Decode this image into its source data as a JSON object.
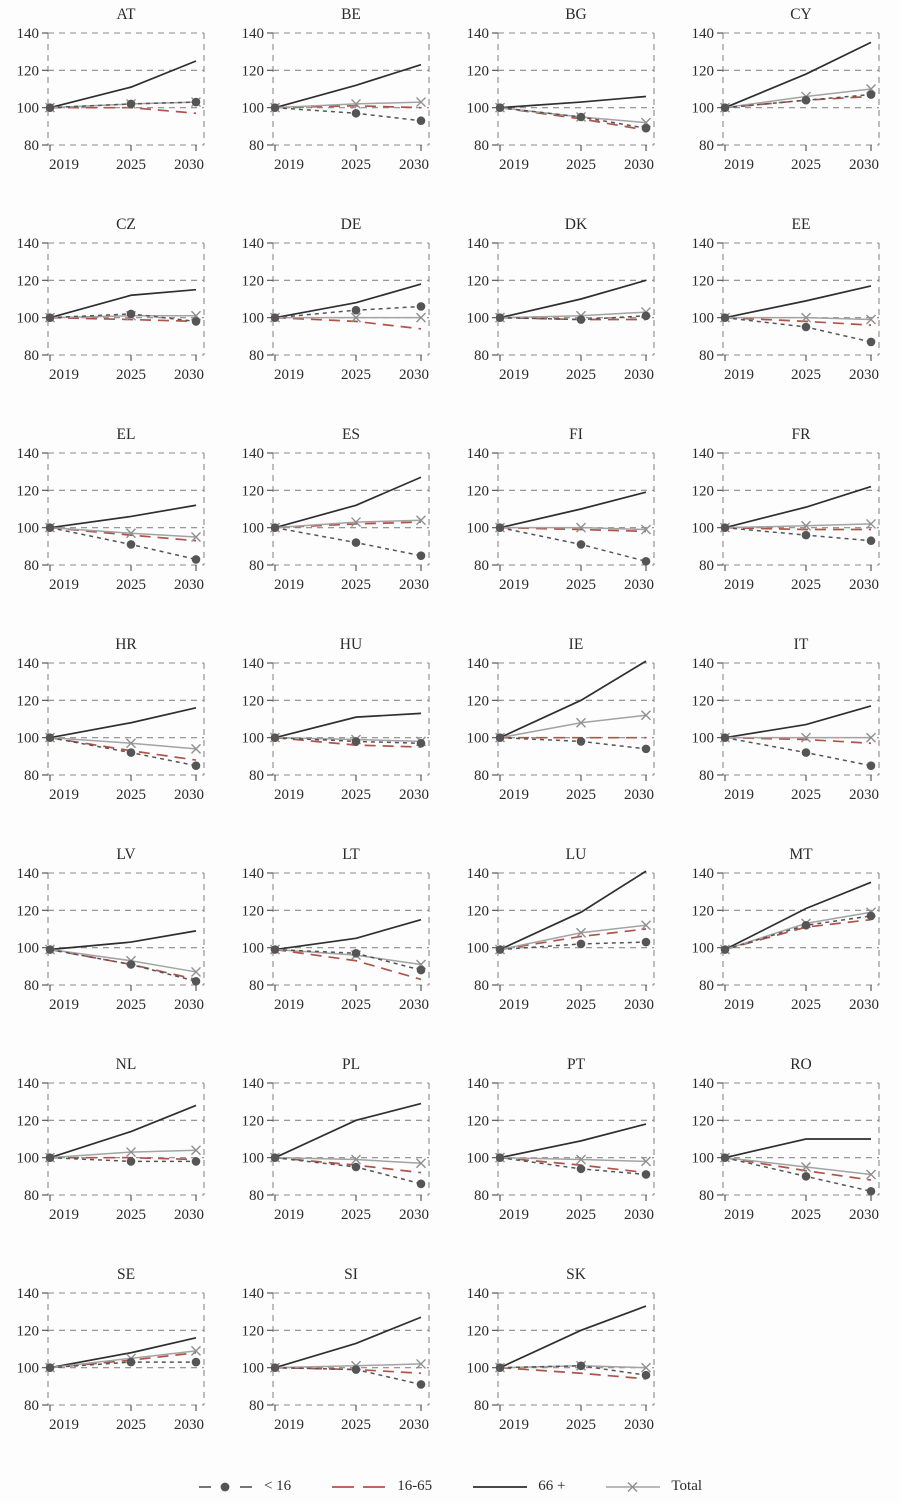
{
  "page": {
    "background": "#fdfdfd",
    "text_color": "#2b2b2b"
  },
  "legend": {
    "items": [
      {
        "label": "< 16",
        "key": "lt16",
        "color": "#555555",
        "style": "dash-dot-marker"
      },
      {
        "label": "16-65",
        "key": "a1665",
        "color": "#b0544b",
        "style": "long-dash"
      },
      {
        "label": "66 +",
        "key": "p66",
        "color": "#2f2f2f",
        "style": "solid"
      },
      {
        "label": "Total",
        "key": "total",
        "color": "#a3a3a3",
        "style": "solid-x-marker"
      }
    ]
  },
  "chart_data": {
    "type": "line",
    "x": [
      2019,
      2025,
      2030
    ],
    "x_tick_labels": [
      "2019",
      "2025",
      "2030"
    ],
    "ylim": [
      80,
      140
    ],
    "yticks": [
      80,
      100,
      120,
      140
    ],
    "grid": "dashed",
    "legend_position": "bottom",
    "colors": {
      "grid": "#8a8a8a",
      "lt16": "#555555",
      "a1665": "#b0544b",
      "p66": "#2f2f2f",
      "total": "#a3a3a3"
    },
    "series_order": [
      "a1665",
      "p66",
      "total",
      "lt16"
    ],
    "panels": [
      {
        "title": "AT",
        "lt16": [
          100,
          102,
          103
        ],
        "a1665": [
          100,
          100,
          97
        ],
        "p66": [
          100,
          111,
          125
        ],
        "total": [
          100,
          102,
          103
        ]
      },
      {
        "title": "BE",
        "lt16": [
          100,
          97,
          93
        ],
        "a1665": [
          100,
          101,
          100
        ],
        "p66": [
          100,
          112,
          123
        ],
        "total": [
          100,
          102,
          103
        ]
      },
      {
        "title": "BG",
        "lt16": [
          100,
          95,
          89
        ],
        "a1665": [
          100,
          94,
          88
        ],
        "p66": [
          100,
          103,
          106
        ],
        "total": [
          100,
          95,
          92
        ]
      },
      {
        "title": "CY",
        "lt16": [
          100,
          104,
          107
        ],
        "a1665": [
          100,
          104,
          106
        ],
        "p66": [
          100,
          118,
          135
        ],
        "total": [
          100,
          106,
          110
        ]
      },
      {
        "title": "CZ",
        "lt16": [
          100,
          102,
          98
        ],
        "a1665": [
          100,
          99,
          98
        ],
        "p66": [
          100,
          112,
          115
        ],
        "total": [
          100,
          101,
          101
        ]
      },
      {
        "title": "DE",
        "lt16": [
          100,
          104,
          106
        ],
        "a1665": [
          100,
          98,
          94
        ],
        "p66": [
          100,
          108,
          118
        ],
        "total": [
          100,
          100,
          100
        ]
      },
      {
        "title": "DK",
        "lt16": [
          100,
          99,
          101
        ],
        "a1665": [
          100,
          99,
          99
        ],
        "p66": [
          100,
          110,
          120
        ],
        "total": [
          100,
          101,
          103
        ]
      },
      {
        "title": "EE",
        "lt16": [
          100,
          95,
          87
        ],
        "a1665": [
          100,
          98,
          96
        ],
        "p66": [
          100,
          109,
          117
        ],
        "total": [
          100,
          100,
          99
        ]
      },
      {
        "title": "EL",
        "lt16": [
          100,
          91,
          83
        ],
        "a1665": [
          100,
          96,
          93
        ],
        "p66": [
          100,
          106,
          112
        ],
        "total": [
          100,
          97,
          95
        ]
      },
      {
        "title": "ES",
        "lt16": [
          100,
          92,
          85
        ],
        "a1665": [
          100,
          102,
          103
        ],
        "p66": [
          100,
          112,
          127
        ],
        "total": [
          100,
          103,
          104
        ]
      },
      {
        "title": "FI",
        "lt16": [
          100,
          91,
          82
        ],
        "a1665": [
          100,
          99,
          98
        ],
        "p66": [
          100,
          110,
          119
        ],
        "total": [
          100,
          100,
          99
        ]
      },
      {
        "title": "FR",
        "lt16": [
          100,
          96,
          93
        ],
        "a1665": [
          100,
          99,
          99
        ],
        "p66": [
          100,
          111,
          122
        ],
        "total": [
          100,
          101,
          102
        ]
      },
      {
        "title": "HR",
        "lt16": [
          100,
          92,
          85
        ],
        "a1665": [
          100,
          93,
          88
        ],
        "p66": [
          100,
          108,
          116
        ],
        "total": [
          100,
          97,
          94
        ]
      },
      {
        "title": "HU",
        "lt16": [
          100,
          98,
          97
        ],
        "a1665": [
          100,
          96,
          95
        ],
        "p66": [
          100,
          111,
          113
        ],
        "total": [
          100,
          99,
          98
        ]
      },
      {
        "title": "IE",
        "lt16": [
          100,
          98,
          94
        ],
        "a1665": [
          100,
          100,
          100
        ],
        "p66": [
          100,
          120,
          141
        ],
        "total": [
          100,
          108,
          112
        ]
      },
      {
        "title": "IT",
        "lt16": [
          100,
          92,
          85
        ],
        "a1665": [
          100,
          99,
          97
        ],
        "p66": [
          100,
          107,
          117
        ],
        "total": [
          100,
          100,
          100
        ]
      },
      {
        "title": "LV",
        "lt16": [
          99,
          91,
          82
        ],
        "a1665": [
          99,
          91,
          83
        ],
        "p66": [
          99,
          103,
          109
        ],
        "total": [
          99,
          93,
          87
        ]
      },
      {
        "title": "LT",
        "lt16": [
          99,
          97,
          88
        ],
        "a1665": [
          99,
          93,
          83
        ],
        "p66": [
          99,
          105,
          115
        ],
        "total": [
          99,
          96,
          91
        ]
      },
      {
        "title": "LU",
        "lt16": [
          99,
          102,
          103
        ],
        "a1665": [
          99,
          106,
          110
        ],
        "p66": [
          99,
          119,
          141
        ],
        "total": [
          99,
          108,
          112
        ]
      },
      {
        "title": "MT",
        "lt16": [
          99,
          112,
          117
        ],
        "a1665": [
          99,
          111,
          115
        ],
        "p66": [
          99,
          121,
          135
        ],
        "total": [
          99,
          113,
          119
        ]
      },
      {
        "title": "NL",
        "lt16": [
          100,
          98,
          98
        ],
        "a1665": [
          100,
          100,
          99
        ],
        "p66": [
          100,
          114,
          128
        ],
        "total": [
          100,
          103,
          104
        ]
      },
      {
        "title": "PL",
        "lt16": [
          100,
          95,
          86
        ],
        "a1665": [
          100,
          96,
          92
        ],
        "p66": [
          100,
          120,
          129
        ],
        "total": [
          100,
          99,
          97
        ]
      },
      {
        "title": "PT",
        "lt16": [
          100,
          94,
          91
        ],
        "a1665": [
          100,
          96,
          92
        ],
        "p66": [
          100,
          109,
          118
        ],
        "total": [
          100,
          99,
          98
        ]
      },
      {
        "title": "RO",
        "lt16": [
          100,
          90,
          82
        ],
        "a1665": [
          100,
          93,
          88
        ],
        "p66": [
          100,
          110,
          110
        ],
        "total": [
          100,
          95,
          91
        ]
      },
      {
        "title": "SE",
        "lt16": [
          100,
          103,
          103
        ],
        "a1665": [
          100,
          104,
          108
        ],
        "p66": [
          100,
          108,
          116
        ],
        "total": [
          100,
          105,
          109
        ]
      },
      {
        "title": "SI",
        "lt16": [
          100,
          99,
          91
        ],
        "a1665": [
          100,
          99,
          97
        ],
        "p66": [
          100,
          113,
          127
        ],
        "total": [
          100,
          101,
          102
        ]
      },
      {
        "title": "SK",
        "lt16": [
          100,
          101,
          96
        ],
        "a1665": [
          100,
          97,
          94
        ],
        "p66": [
          100,
          120,
          133
        ],
        "total": [
          100,
          101,
          100
        ]
      }
    ]
  }
}
